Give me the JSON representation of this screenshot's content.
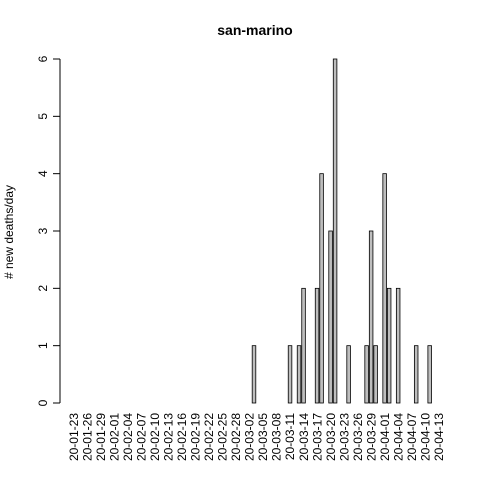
{
  "chart_data": {
    "type": "bar",
    "title": "san-marino",
    "xlabel": "",
    "ylabel": "# new deaths/day",
    "ylim": [
      0,
      6
    ],
    "yticks": [
      0,
      1,
      2,
      3,
      4,
      5,
      6
    ],
    "grid": false,
    "legend": "none",
    "start_date": "2020-01-23",
    "tick_labels": [
      "20-01-23",
      "20-01-26",
      "20-01-29",
      "20-02-01",
      "20-02-04",
      "20-02-07",
      "20-02-10",
      "20-02-13",
      "20-02-16",
      "20-02-19",
      "20-02-22",
      "20-02-25",
      "20-02-28",
      "20-03-02",
      "20-03-05",
      "20-03-08",
      "20-03-11",
      "20-03-14",
      "20-03-17",
      "20-03-20",
      "20-03-23",
      "20-03-26",
      "20-03-29",
      "20-04-01",
      "20-04-04",
      "20-04-07",
      "20-04-10",
      "20-04-13"
    ],
    "values": [
      0,
      0,
      0,
      0,
      0,
      0,
      0,
      0,
      0,
      0,
      0,
      0,
      0,
      0,
      0,
      0,
      0,
      0,
      0,
      0,
      0,
      0,
      0,
      0,
      0,
      0,
      0,
      0,
      0,
      0,
      0,
      0,
      0,
      0,
      0,
      0,
      0,
      0,
      0,
      0,
      1,
      0,
      0,
      0,
      0,
      0,
      0,
      0,
      1,
      0,
      1,
      2,
      0,
      0,
      2,
      4,
      0,
      3,
      6,
      0,
      0,
      1,
      0,
      0,
      0,
      1,
      3,
      1,
      0,
      4,
      2,
      0,
      2,
      0,
      0,
      0,
      1,
      0,
      0,
      1
    ]
  }
}
